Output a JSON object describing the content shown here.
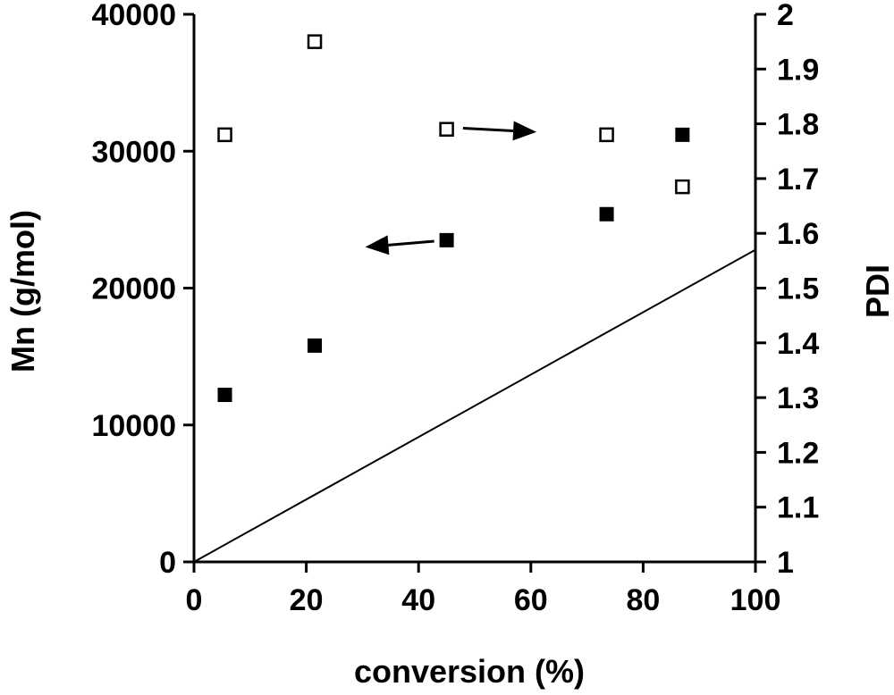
{
  "chart_data": {
    "type": "scatter",
    "title": "",
    "xlabel": "conversion (%)",
    "ylabel_left": "Mn (g/mol)",
    "ylabel_right": "PDI",
    "xlim": [
      0,
      100
    ],
    "ylim_left": [
      0,
      40000
    ],
    "ylim_right": [
      1,
      2
    ],
    "x_ticks": [
      "0",
      "20",
      "40",
      "60",
      "80",
      "100"
    ],
    "y_left_ticks": [
      "0",
      "10000",
      "20000",
      "30000",
      "40000"
    ],
    "y_right_ticks": [
      "1",
      "1.1",
      "1.2",
      "1.3",
      "1.4",
      "1.5",
      "1.6",
      "1.7",
      "1.8",
      "1.9",
      "2"
    ],
    "grid": false,
    "series": [
      {
        "marker": "filled-square",
        "axis": "left",
        "color": "#000000",
        "points": [
          {
            "x": 5.5,
            "y": 12200
          },
          {
            "x": 21.5,
            "y": 15800
          },
          {
            "x": 45,
            "y": 23500
          },
          {
            "x": 73.5,
            "y": 25400
          },
          {
            "x": 87,
            "y": 31200
          }
        ]
      },
      {
        "marker": "open-square",
        "axis": "right",
        "color": "#000000",
        "points": [
          {
            "x": 5.5,
            "y": 1.78
          },
          {
            "x": 21.5,
            "y": 1.95
          },
          {
            "x": 45,
            "y": 1.79
          },
          {
            "x": 73.5,
            "y": 1.78
          },
          {
            "x": 87,
            "y": 1.685
          }
        ]
      },
      {
        "marker": "line",
        "axis": "left",
        "color": "#000000",
        "points": [
          {
            "x": 0,
            "y": 0
          },
          {
            "x": 100,
            "y": 22800
          }
        ]
      }
    ],
    "annotations": [
      {
        "kind": "arrow",
        "direction": "left",
        "from": {
          "x": 45,
          "y": 23500
        },
        "to": {
          "x": 30.5,
          "y": 23000
        },
        "axis": "left"
      },
      {
        "kind": "arrow",
        "direction": "right",
        "from": {
          "x": 46,
          "y": 1.793
        },
        "to": {
          "x": 61,
          "y": 1.785
        },
        "axis": "right"
      }
    ]
  }
}
